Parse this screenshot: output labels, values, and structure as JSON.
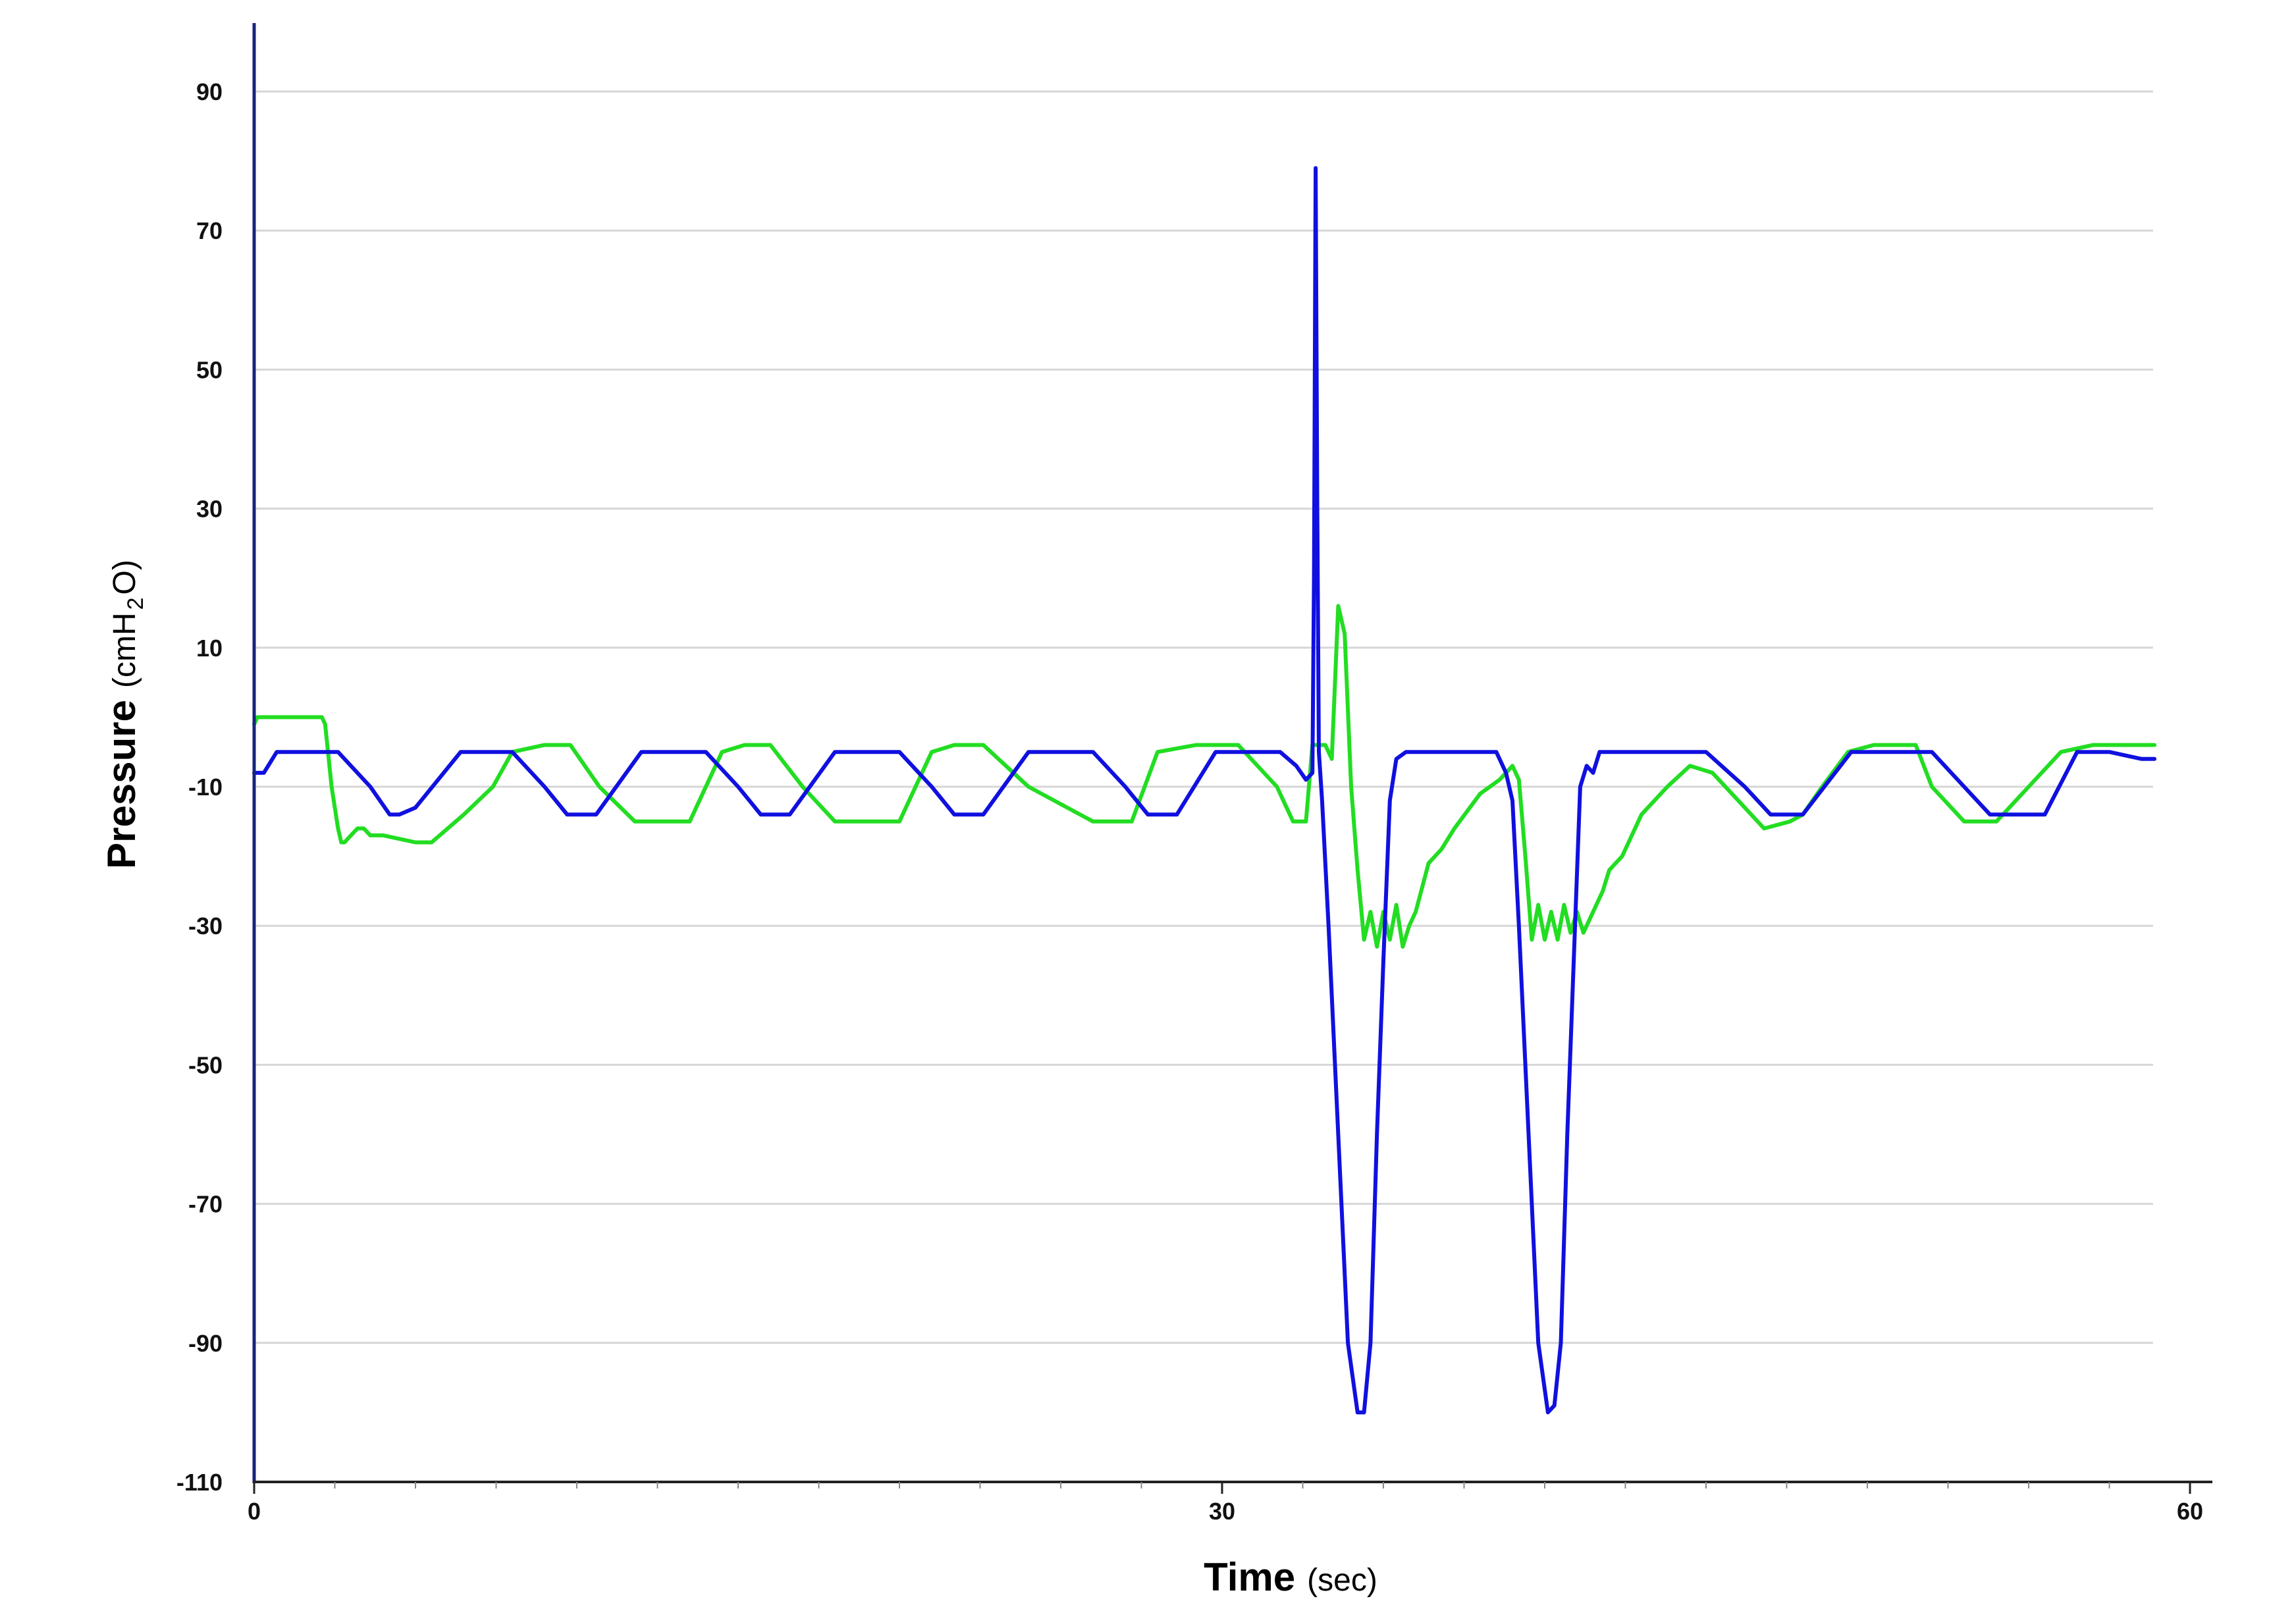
{
  "chart_data": {
    "type": "line",
    "xlabel_main": "Time",
    "xlabel_unit": "(sec)",
    "ylabel_main": "Pressure",
    "ylabel_unit_prefix": "(cmH",
    "ylabel_unit_sub": "2",
    "ylabel_unit_suffix": "O)",
    "xlim": [
      0,
      60
    ],
    "ylim": [
      -110,
      100
    ],
    "x_ticks": [
      0,
      30,
      60
    ],
    "x_tick_labels": [
      "0",
      "30",
      "60"
    ],
    "y_ticks": [
      90,
      70,
      50,
      30,
      10,
      -10,
      -30,
      -50,
      -70,
      -90,
      -110
    ],
    "y_tick_labels": [
      "90",
      "70",
      "50",
      "30",
      "10",
      "-10",
      "-30",
      "-50",
      "-70",
      "-90",
      "-110"
    ],
    "grid": "horizontal",
    "series": [
      {
        "color": "#1010e0",
        "x": [
          0,
          0.3,
          0.7,
          2.6,
          3.6,
          4.2,
          4.5,
          5.0,
          6.4,
          8.0,
          9.0,
          9.7,
          10.6,
          12.0,
          14.0,
          15.0,
          15.7,
          16.6,
          18.0,
          20.0,
          21.0,
          21.7,
          22.6,
          24.0,
          26.0,
          27.0,
          27.7,
          28.6,
          29.8,
          31.8,
          32.3,
          32.6,
          32.8,
          32.85,
          32.9,
          32.95,
          33.0,
          33.1,
          33.3,
          33.6,
          33.9,
          34.2,
          34.4,
          34.6,
          34.8,
          35.0,
          35.2,
          35.4,
          35.7,
          36.0,
          36.5,
          38.5,
          38.8,
          39.0,
          39.2,
          39.5,
          39.8,
          40.1,
          40.3,
          40.5,
          40.7,
          40.9,
          41.1,
          41.3,
          41.5,
          41.7,
          41.9,
          42.2,
          43.0,
          45.0,
          46.2,
          47.0,
          48.0,
          49.5,
          51.0,
          52.0,
          53.0,
          53.8,
          55.5,
          56.5,
          57.5,
          58.5,
          58.9
        ],
        "values": [
          -8,
          -8,
          -5,
          -5,
          -10,
          -14,
          -14,
          -13,
          -5,
          -5,
          -10,
          -14,
          -14,
          -5,
          -5,
          -10,
          -14,
          -14,
          -5,
          -5,
          -10,
          -14,
          -14,
          -5,
          -5,
          -10,
          -14,
          -14,
          -5,
          -5,
          -7,
          -9,
          -8,
          20,
          79,
          30,
          -5,
          -12,
          -30,
          -60,
          -90,
          -100,
          -100,
          -90,
          -60,
          -35,
          -12,
          -6,
          -5,
          -5,
          -5,
          -5,
          -8,
          -12,
          -30,
          -60,
          -90,
          -100,
          -99,
          -90,
          -60,
          -35,
          -10,
          -7,
          -8,
          -5,
          -5,
          -5,
          -5,
          -5,
          -10,
          -14,
          -14,
          -5,
          -5,
          -5,
          -10,
          -14,
          -14,
          -5,
          -5,
          -6,
          -6
        ]
      },
      {
        "color": "#22dd22",
        "x": [
          0,
          0.1,
          0.3,
          2.0,
          2.1,
          2.2,
          2.4,
          2.6,
          2.7,
          2.8,
          3.0,
          3.2,
          3.4,
          3.6,
          4.0,
          5.0,
          5.5,
          6.5,
          7.4,
          8.0,
          9.0,
          9.8,
          10.7,
          11.8,
          13.5,
          14.5,
          15.2,
          16.0,
          17.0,
          18.0,
          20.0,
          21.0,
          21.7,
          22.6,
          24.0,
          26.0,
          27.2,
          28.0,
          29.2,
          30.5,
          31.7,
          32.2,
          32.6,
          32.8,
          33.0,
          33.2,
          33.4,
          33.6,
          33.8,
          34.0,
          34.2,
          34.4,
          34.6,
          34.8,
          35.0,
          35.2,
          35.4,
          35.6,
          35.8,
          36.0,
          36.4,
          36.8,
          37.2,
          38.0,
          38.6,
          39.0,
          39.2,
          39.4,
          39.6,
          39.8,
          40.0,
          40.2,
          40.4,
          40.6,
          40.8,
          41.0,
          41.2,
          41.4,
          41.6,
          41.8,
          42.0,
          42.4,
          43.0,
          43.8,
          44.5,
          45.2,
          46.0,
          46.8,
          47.6,
          48.0,
          48.6,
          49.4,
          50.2,
          51.5,
          52.0,
          53.0,
          54.0,
          55.0,
          56.0,
          57.0,
          58.0,
          58.9
        ],
        "values": [
          -1,
          0,
          0,
          0,
          0,
          -1,
          -10,
          -16,
          -18,
          -18,
          -17,
          -16,
          -16,
          -17,
          -17,
          -18,
          -18,
          -14,
          -10,
          -5,
          -4,
          -4,
          -10,
          -15,
          -15,
          -5,
          -4,
          -4,
          -10,
          -15,
          -15,
          -5,
          -4,
          -4,
          -10,
          -15,
          -15,
          -5,
          -4,
          -4,
          -10,
          -15,
          -15,
          -4,
          -4,
          -4,
          -6,
          16,
          12,
          -10,
          -22,
          -32,
          -28,
          -33,
          -28,
          -32,
          -27,
          -33,
          -30,
          -28,
          -21,
          -19,
          -16,
          -11,
          -9,
          -7,
          -9,
          -20,
          -32,
          -27,
          -32,
          -28,
          -32,
          -27,
          -31,
          -28,
          -31,
          -29,
          -27,
          -25,
          -22,
          -20,
          -14,
          -10,
          -7,
          -8,
          -12,
          -16,
          -15,
          -14,
          -10,
          -5,
          -4,
          -4,
          -10,
          -15,
          -15,
          -10,
          -5,
          -4,
          -4,
          -4
        ]
      }
    ]
  }
}
